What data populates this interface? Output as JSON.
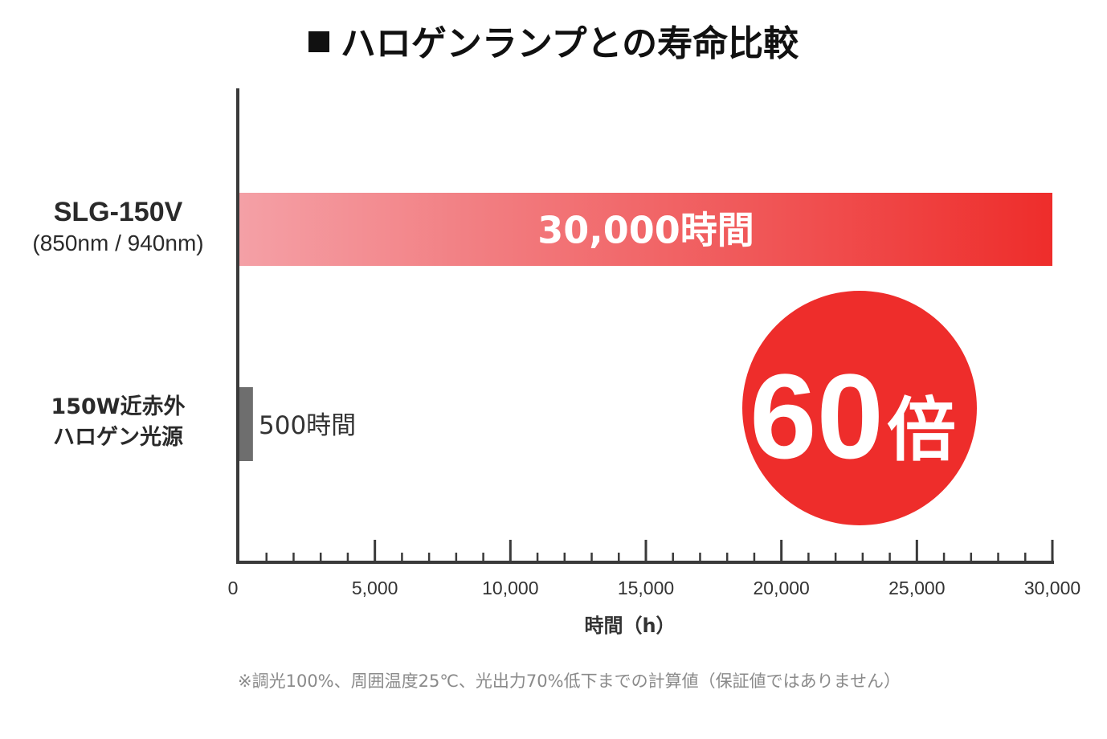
{
  "title": "ハロゲンランプとの寿命比較",
  "footnote": "※調光100%、周囲温度25℃、光出力70%低下までの計算値（保証値ではありません）",
  "colors": {
    "bar_start": "#f4a0a6",
    "bar_end": "#ee2d2b",
    "bar_gray": "#6e6e6e",
    "axis": "#3a3a3a",
    "badge": "#ee2d2b",
    "tick_text": "#333333"
  },
  "badge": {
    "number": "60",
    "unit": "倍"
  },
  "chart_data": {
    "type": "bar",
    "orientation": "horizontal",
    "title": "ハロゲンランプとの寿命比較",
    "categories": [
      {
        "name": "SLG-150V",
        "sub": "(850nm / 940nm)"
      },
      {
        "name_lines": [
          "150W近赤外",
          "ハロゲン光源"
        ]
      }
    ],
    "values": [
      30000,
      500
    ],
    "value_labels": [
      "30,000時間",
      "500時間"
    ],
    "xlim": [
      0,
      30000
    ],
    "xticks": [
      0,
      5000,
      10000,
      15000,
      20000,
      25000,
      30000
    ],
    "xtick_labels": [
      "0",
      "5,000",
      "10,000",
      "15,000",
      "20,000",
      "25,000",
      "30,000"
    ],
    "minor_tick_step": 1000,
    "xlabel": "時間（h）",
    "ylabel": "",
    "annotation": "60倍"
  }
}
